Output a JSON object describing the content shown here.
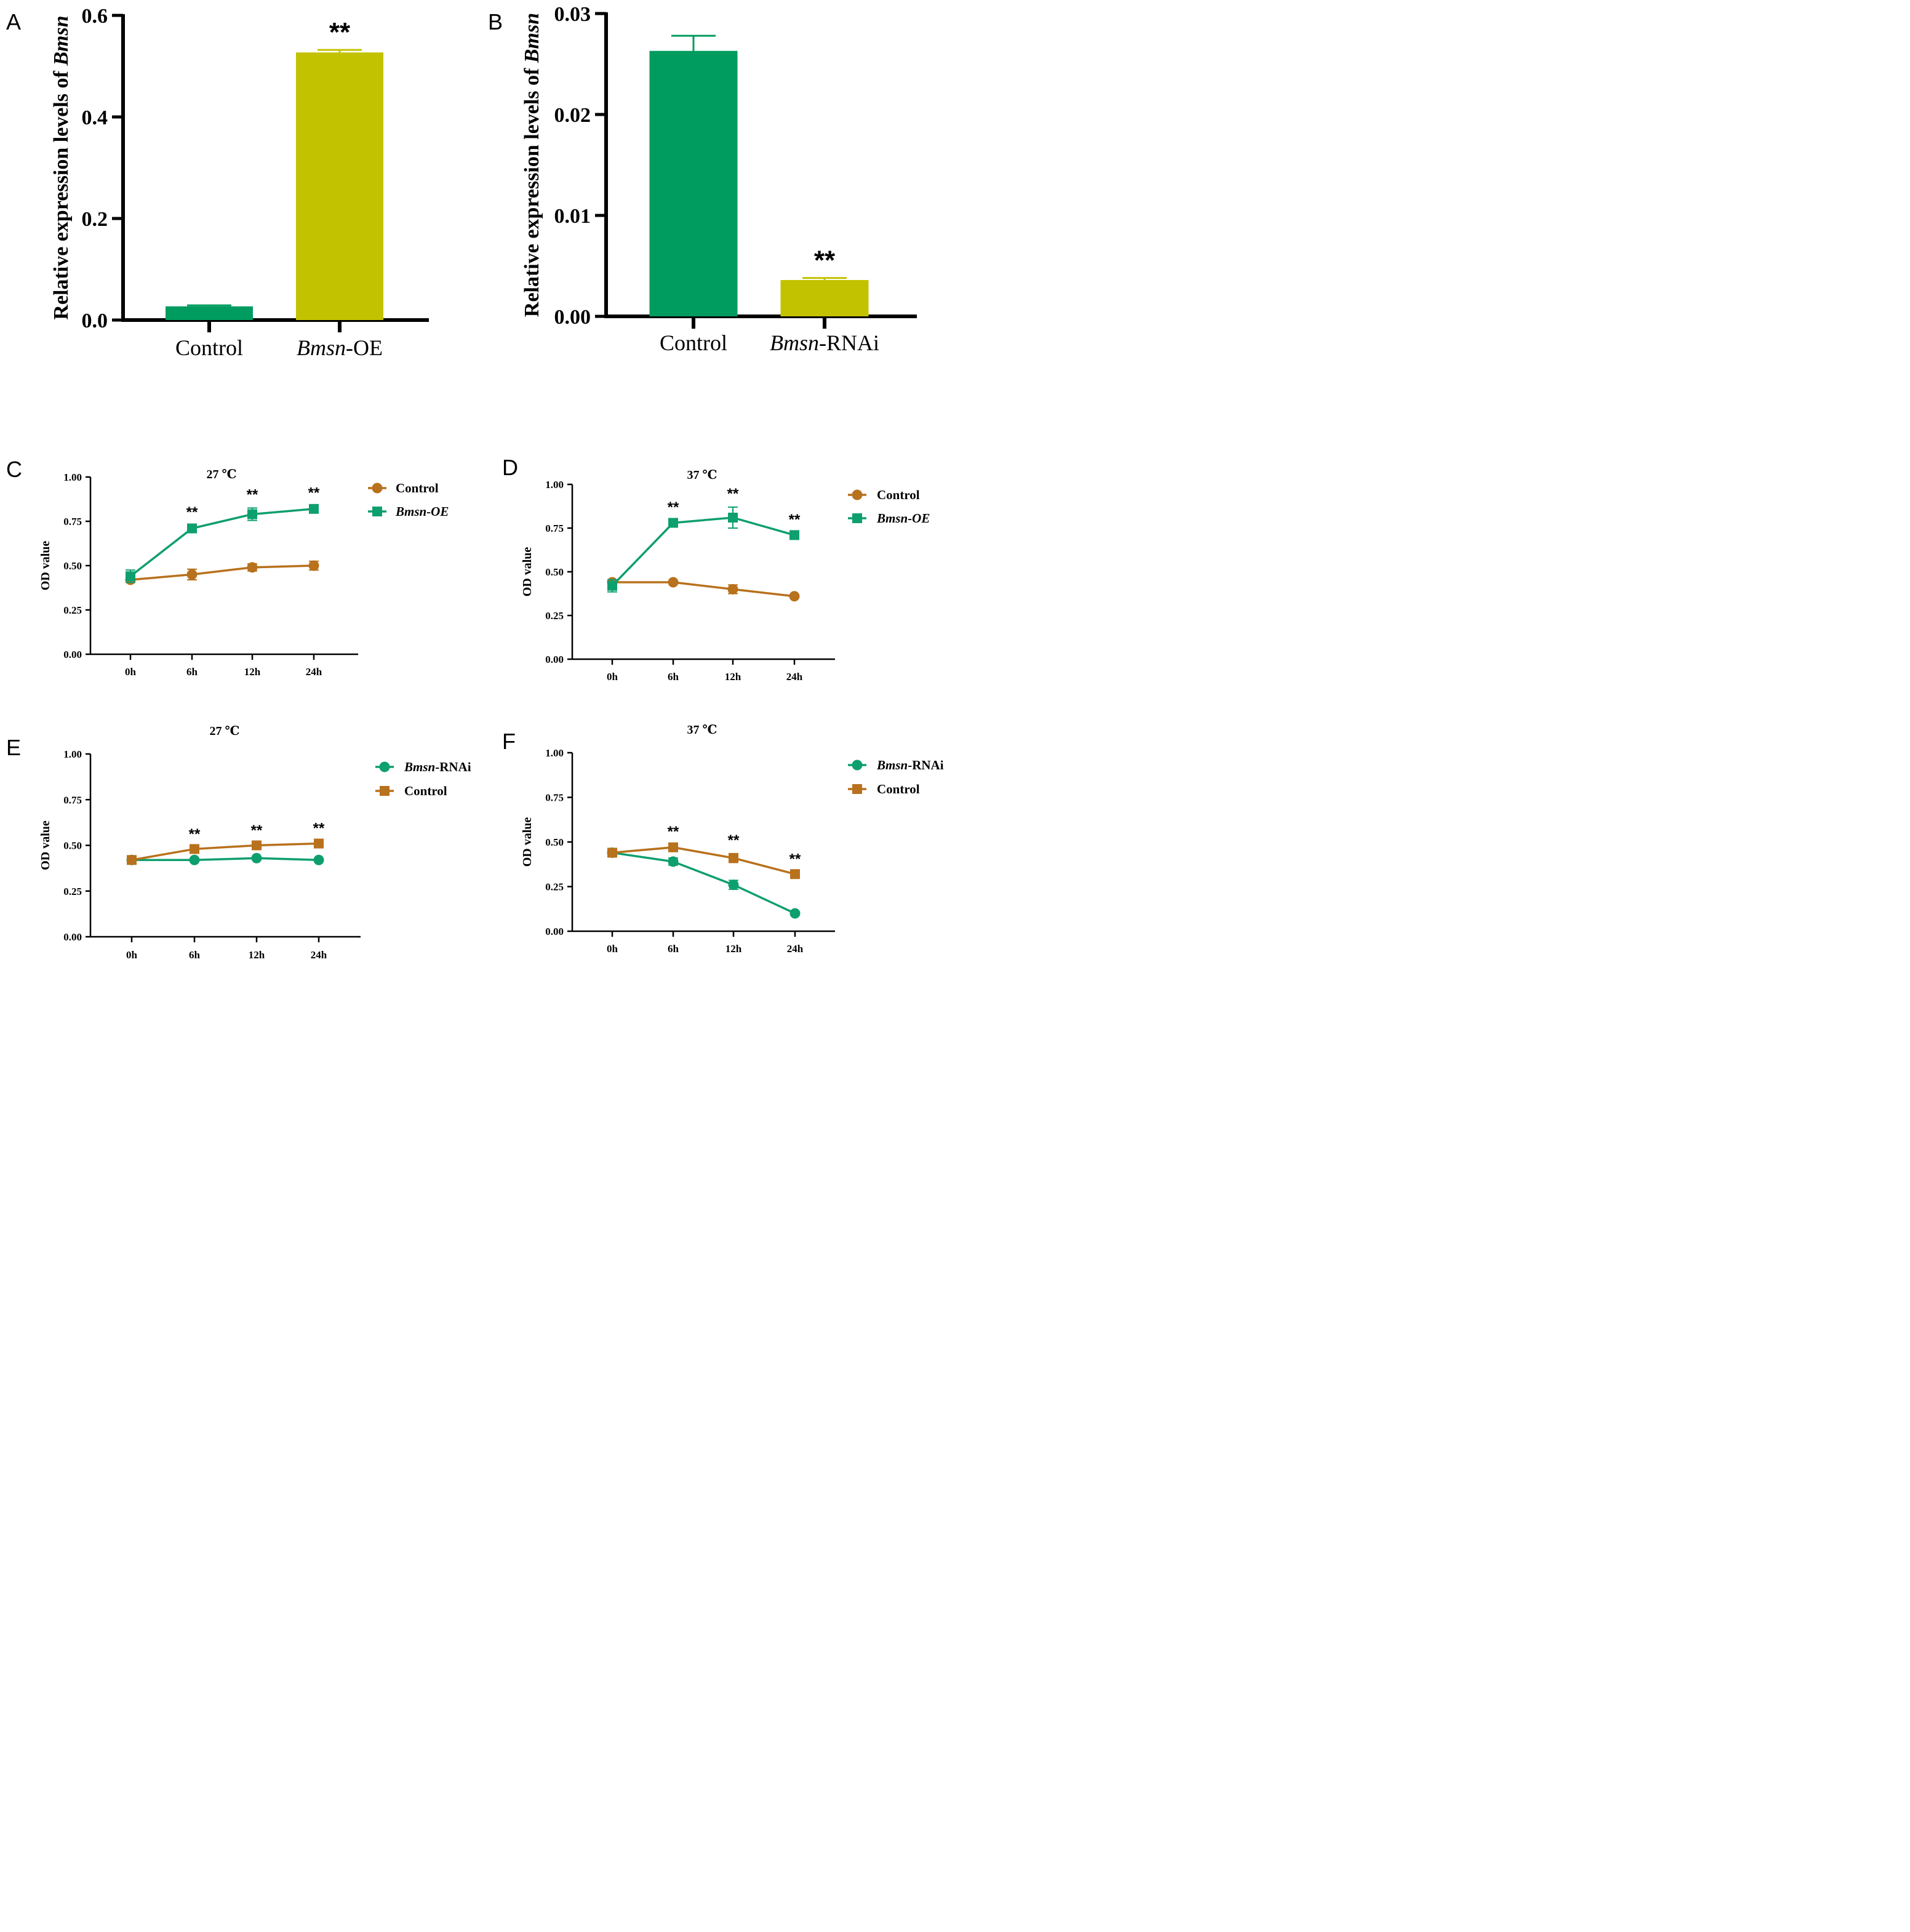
{
  "chart_data": [
    {
      "panel_letter": "A",
      "type": "bar",
      "ylabel_prefix": "Relative expression levels of ",
      "ylabel_gene": "Bmsn",
      "yticks": [
        "0.0",
        "0.2",
        "0.4",
        "0.6"
      ],
      "ylim": [
        0,
        0.6
      ],
      "categories": [
        {
          "italic": "",
          "plain": "Control"
        },
        {
          "italic": "Bmsn",
          "plain": "-OE"
        }
      ],
      "values": [
        0.027,
        0.527
      ],
      "errors": [
        0.002,
        0.005
      ],
      "colors": [
        "#009B5F",
        "#C2C200"
      ],
      "significance": [
        "",
        "**"
      ]
    },
    {
      "panel_letter": "B",
      "type": "bar",
      "ylabel_prefix": "Relative expression levels of ",
      "ylabel_gene": "Bmsn",
      "yticks": [
        "0.00",
        "0.01",
        "0.02",
        "0.03"
      ],
      "ylim": [
        0,
        0.03
      ],
      "categories": [
        {
          "italic": "",
          "plain": "Control"
        },
        {
          "italic": "Bmsn",
          "plain": "-RNAi"
        }
      ],
      "values": [
        0.0263,
        0.0036
      ],
      "errors": [
        0.0015,
        0.0002
      ],
      "colors": [
        "#009B5F",
        "#C2C200"
      ],
      "significance": [
        "",
        "**"
      ]
    },
    {
      "panel_letter": "C",
      "type": "line",
      "title": "27 ℃",
      "ylabel": "OD value",
      "x": [
        "0h",
        "6h",
        "12h",
        "24h"
      ],
      "yticks": [
        "0.00",
        "0.25",
        "0.50",
        "0.75",
        "1.00"
      ],
      "ylim": [
        0,
        1
      ],
      "series": [
        {
          "italic": "",
          "plain": "Control",
          "marker": "circle",
          "color": "#B8711C",
          "values": [
            0.42,
            0.45,
            0.49,
            0.5
          ],
          "errors": [
            0.015,
            0.03,
            0.02,
            0.025
          ]
        },
        {
          "italic": "Bmsn-OE",
          "plain": "",
          "marker": "square",
          "color": "#0E9F6E",
          "values": [
            0.44,
            0.71,
            0.79,
            0.82
          ],
          "errors": [
            0.035,
            0.015,
            0.035,
            0.015
          ]
        }
      ],
      "significance": [
        "",
        "**",
        "**",
        "**"
      ]
    },
    {
      "panel_letter": "D",
      "type": "line",
      "title": "37 ℃",
      "ylabel": "OD value",
      "x": [
        "0h",
        "6h",
        "12h",
        "24h"
      ],
      "yticks": [
        "0.00",
        "0.25",
        "0.50",
        "0.75",
        "1.00"
      ],
      "ylim": [
        0,
        1
      ],
      "series": [
        {
          "italic": "",
          "plain": "Control",
          "marker": "circle",
          "color": "#B8711C",
          "values": [
            0.44,
            0.44,
            0.4,
            0.36
          ],
          "errors": [
            0.01,
            0.008,
            0.025,
            0.008
          ]
        },
        {
          "italic": "Bmsn-OE",
          "plain": "",
          "marker": "square",
          "color": "#0E9F6E",
          "values": [
            0.42,
            0.78,
            0.81,
            0.71
          ],
          "errors": [
            0.035,
            0.012,
            0.06,
            0.012
          ]
        }
      ],
      "significance": [
        "",
        "**",
        "**",
        "**"
      ]
    },
    {
      "panel_letter": "E",
      "type": "line",
      "title": "27 ℃",
      "ylabel": "OD value",
      "x": [
        "0h",
        "6h",
        "12h",
        "24h"
      ],
      "yticks": [
        "0.00",
        "0.25",
        "0.50",
        "0.75",
        "1.00"
      ],
      "ylim": [
        0,
        1
      ],
      "series": [
        {
          "italic": "Bmsn",
          "plain": "-RNAi",
          "marker": "circle",
          "color": "#0E9F6E",
          "values": [
            0.42,
            0.42,
            0.43,
            0.42
          ],
          "errors": [
            0.006,
            0.006,
            0.006,
            0.006
          ]
        },
        {
          "italic": "",
          "plain": "Control",
          "marker": "square",
          "color": "#B8711C",
          "values": [
            0.42,
            0.48,
            0.5,
            0.51
          ],
          "errors": [
            0.006,
            0.008,
            0.008,
            0.01
          ]
        }
      ],
      "significance": [
        "",
        "**",
        "**",
        "**"
      ]
    },
    {
      "panel_letter": "F",
      "type": "line",
      "title": "37 ℃",
      "ylabel": "OD value",
      "x": [
        "0h",
        "6h",
        "12h",
        "24h"
      ],
      "yticks": [
        "0.00",
        "0.25",
        "0.50",
        "0.75",
        "1.00"
      ],
      "ylim": [
        0,
        1
      ],
      "series": [
        {
          "italic": "Bmsn",
          "plain": "-RNAi",
          "marker": "circle",
          "color": "#0E9F6E",
          "values": [
            0.44,
            0.39,
            0.26,
            0.1
          ],
          "errors": [
            0.008,
            0.02,
            0.025,
            0.006
          ]
        },
        {
          "italic": "",
          "plain": "Control",
          "marker": "square",
          "color": "#B8711C",
          "values": [
            0.44,
            0.47,
            0.41,
            0.32
          ],
          "errors": [
            0.008,
            0.012,
            0.025,
            0.01
          ]
        }
      ],
      "significance": [
        "",
        "**",
        "**",
        "**"
      ]
    }
  ]
}
